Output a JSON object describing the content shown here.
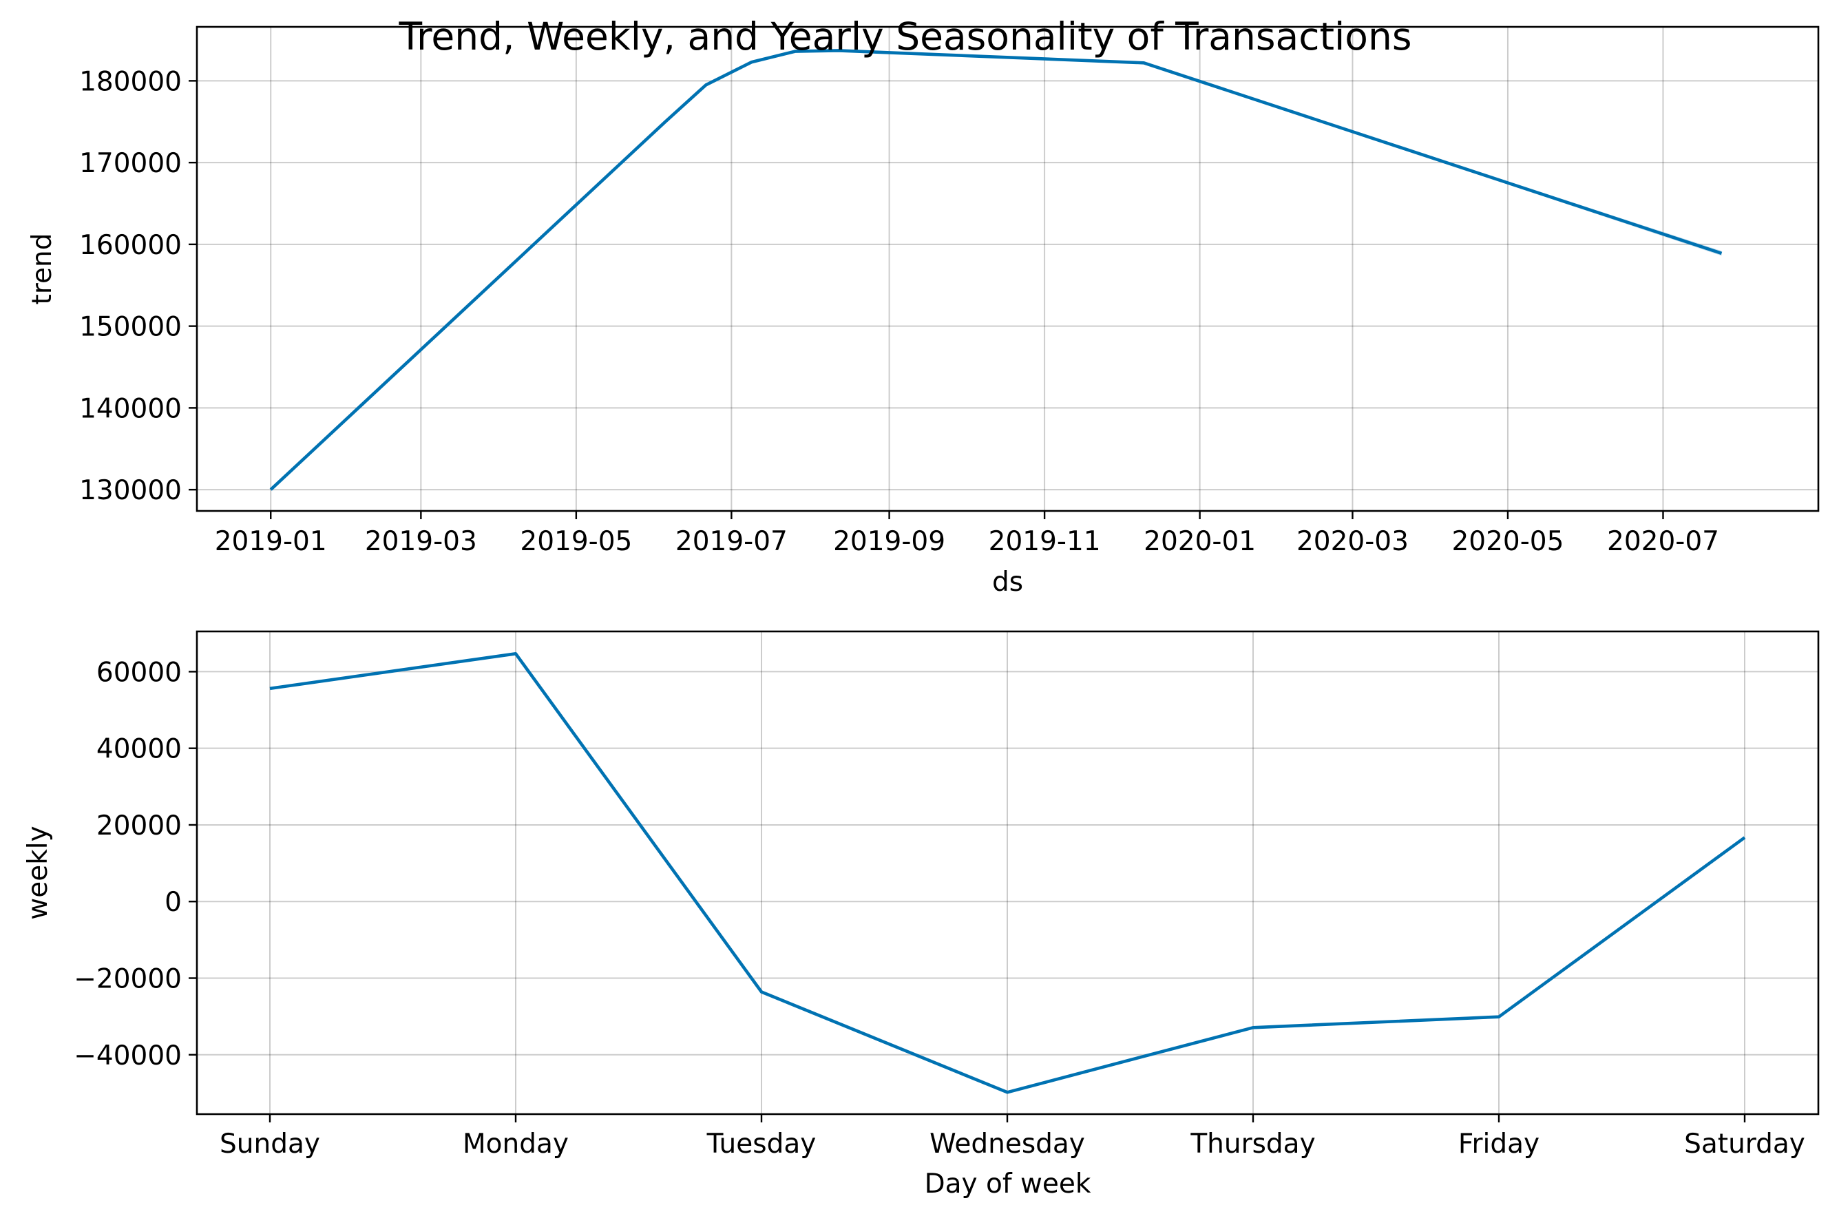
{
  "figure": {
    "title": "Trend, Weekly, and Yearly Seasonality of Transactions",
    "line_color": "#0072B2"
  },
  "chart_data": [
    {
      "type": "line",
      "name": "trend",
      "xlabel": "ds",
      "ylabel": "trend",
      "x_is_date": true,
      "xlim": [
        "2018-12-03",
        "2020-08-31"
      ],
      "ylim": [
        127400,
        186600
      ],
      "x_ticks": [
        "2019-01-01",
        "2019-03-01",
        "2019-05-01",
        "2019-07-01",
        "2019-09-01",
        "2019-11-01",
        "2020-01-01",
        "2020-03-01",
        "2020-05-01",
        "2020-07-01"
      ],
      "x_tick_labels": [
        "2019-01",
        "2019-03",
        "2019-05",
        "2019-07",
        "2019-09",
        "2019-11",
        "2020-01",
        "2020-03",
        "2020-05",
        "2020-07"
      ],
      "y_ticks": [
        130000,
        140000,
        150000,
        160000,
        170000,
        180000
      ],
      "y_tick_labels": [
        "130000",
        "140000",
        "150000",
        "160000",
        "170000",
        "180000"
      ],
      "grid": true,
      "x": [
        "2019-01-01",
        "2019-06-05",
        "2019-06-21",
        "2019-07-09",
        "2019-07-26",
        "2019-08-12",
        "2019-12-10",
        "2020-07-24"
      ],
      "y": [
        130000,
        175000,
        179500,
        182300,
        183600,
        183700,
        182200,
        158900
      ],
      "band_lower": [
        130000,
        175000,
        179500,
        182300,
        183600,
        183700,
        182200,
        158600
      ],
      "band_upper": [
        130000,
        175000,
        179500,
        182300,
        183600,
        183700,
        182200,
        159200
      ]
    },
    {
      "type": "line",
      "name": "weekly",
      "xlabel": "Day of week",
      "ylabel": "weekly",
      "categories": [
        "Sunday",
        "Monday",
        "Tuesday",
        "Wednesday",
        "Thursday",
        "Friday",
        "Saturday"
      ],
      "values": [
        55600,
        64700,
        -23600,
        -49800,
        -32900,
        -30100,
        16700
      ],
      "ylim": [
        -55500,
        70500
      ],
      "y_ticks": [
        -40000,
        -20000,
        0,
        20000,
        40000,
        60000
      ],
      "y_tick_labels": [
        "−40000",
        "−20000",
        "0",
        "20000",
        "40000",
        "60000"
      ],
      "grid": true
    }
  ]
}
